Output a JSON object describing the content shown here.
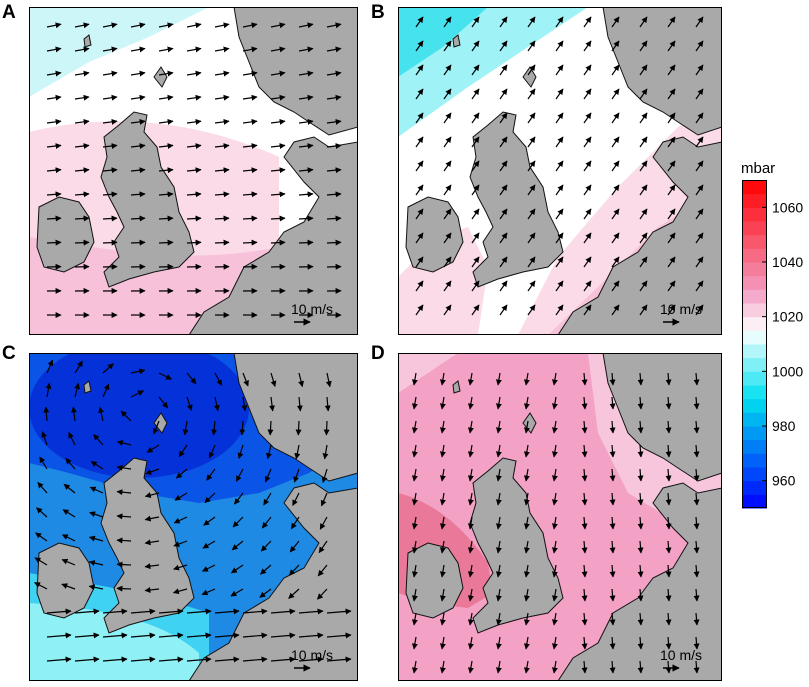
{
  "figure": {
    "panels": [
      {
        "letter": "A",
        "scale_label": "10 m/s",
        "pressure_field": "high, pink south / cyan north",
        "wind": "westerly"
      },
      {
        "letter": "B",
        "scale_label": "10 m/s",
        "pressure_field": "high, pink south-east / cyan north-west",
        "wind": "south-westerly"
      },
      {
        "letter": "C",
        "scale_label": "10 m/s",
        "pressure_field": "deep low over northern North Sea",
        "wind": "cyclonic, strong westerly in south"
      },
      {
        "letter": "D",
        "scale_label": "10 m/s",
        "pressure_field": "high centred west of Britain",
        "wind": "northerly / north-westerly"
      }
    ],
    "colorbar": {
      "title": "mbar",
      "min": 950,
      "max": 1070,
      "step": 5,
      "ticks": [
        "1060",
        "1040",
        "1020",
        "1000",
        "980",
        "960"
      ],
      "colors": {
        "low": "#0000ff",
        "mid_low": "#00e0ef",
        "neutral": "#ffffff",
        "mid_high": "#f29ac0",
        "high": "#ff0000"
      }
    },
    "land_color": "#a9a9a9",
    "arrow_color": "#000000"
  }
}
